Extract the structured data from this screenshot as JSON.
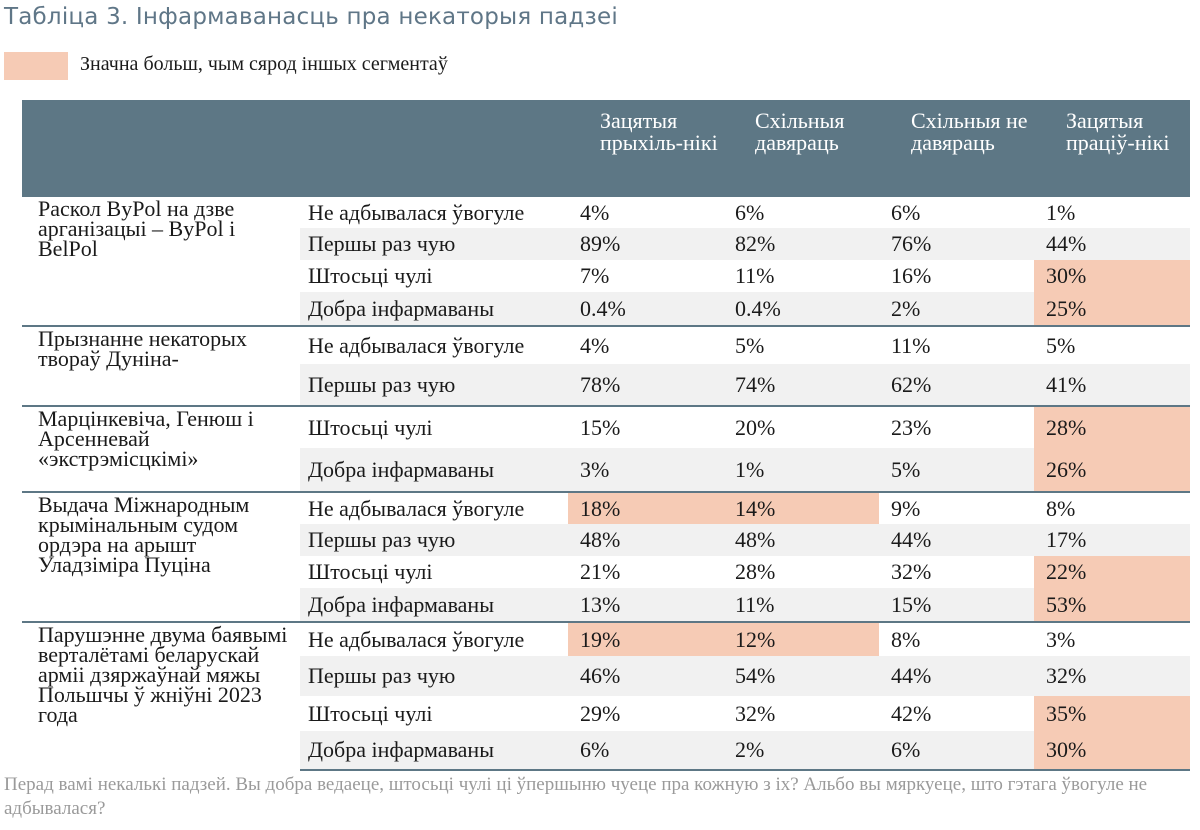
{
  "title": "Табліца 3. Інфармаванасць пра некаторыя падзеі",
  "legend": {
    "label": "Значна больш, чым сярод іншых сегментаў",
    "color": "#f6cbb5"
  },
  "header_color": "#5d7785",
  "columns": [
    "Зацятыя прыхіль-нікі",
    "Схільныя давяраць",
    "Схільныя не давяраць",
    "Зацятыя праціў-нікі"
  ],
  "groups": [
    {
      "event": "Раскол ByPol на дзве арганізацыі – ByPol і BelPol",
      "rows": [
        {
          "answer": "Не адбывалася ўвогуле",
          "values": [
            "4%",
            "6%",
            "6%",
            "1%"
          ],
          "highlight": [
            false,
            false,
            false,
            false
          ]
        },
        {
          "answer": "Першы раз чую",
          "values": [
            "89%",
            "82%",
            "76%",
            "44%"
          ],
          "highlight": [
            false,
            false,
            false,
            false
          ]
        },
        {
          "answer": "Штосьці чулі",
          "values": [
            "7%",
            "11%",
            "16%",
            "30%"
          ],
          "highlight": [
            false,
            false,
            false,
            true
          ]
        },
        {
          "answer": "Добра інфармаваны",
          "values": [
            "0.4%",
            "0.4%",
            "2%",
            "25%"
          ],
          "highlight": [
            false,
            false,
            false,
            true
          ]
        }
      ]
    },
    {
      "event": "Прызнанне некаторых твораў Дуніна-",
      "rows": [
        {
          "answer": "Не адбывалася ўвогуле",
          "values": [
            "4%",
            "5%",
            "11%",
            "5%"
          ],
          "highlight": [
            false,
            false,
            false,
            false
          ]
        },
        {
          "answer": "Першы раз чую",
          "values": [
            "78%",
            "74%",
            "62%",
            "41%"
          ],
          "highlight": [
            false,
            false,
            false,
            false
          ]
        }
      ]
    },
    {
      "event": "Марцінкевіча, Генюш і Арсенневай «экстрэмісцкімі»",
      "rows": [
        {
          "answer": "Штосьці чулі",
          "values": [
            "15%",
            "20%",
            "23%",
            "28%"
          ],
          "highlight": [
            false,
            false,
            false,
            true
          ]
        },
        {
          "answer": "Добра інфармаваны",
          "values": [
            "3%",
            "1%",
            "5%",
            "26%"
          ],
          "highlight": [
            false,
            false,
            false,
            true
          ]
        }
      ]
    },
    {
      "event": "Выдача Міжнародным крымінальным судом ордэра на арышт Уладзіміра Пуціна",
      "rows": [
        {
          "answer": "Не адбывалася ўвогуле",
          "values": [
            "18%",
            "14%",
            "9%",
            "8%"
          ],
          "highlight": [
            true,
            true,
            false,
            false
          ]
        },
        {
          "answer": "Першы раз чую",
          "values": [
            "48%",
            "48%",
            "44%",
            "17%"
          ],
          "highlight": [
            false,
            false,
            false,
            false
          ]
        },
        {
          "answer": "Штосьці чулі",
          "values": [
            "21%",
            "28%",
            "32%",
            "22%"
          ],
          "highlight": [
            false,
            false,
            false,
            true
          ]
        },
        {
          "answer": "Добра інфармаваны",
          "values": [
            "13%",
            "11%",
            "15%",
            "53%"
          ],
          "highlight": [
            false,
            false,
            false,
            true
          ]
        }
      ]
    },
    {
      "event": "Парушэнне двума баявымі верталётамі беларускай арміі дзяржаўнай мяжы Польшчы ў жніўні 2023 года",
      "rows": [
        {
          "answer": "Не адбывалася ўвогуле",
          "values": [
            "19%",
            "12%",
            "8%",
            "3%"
          ],
          "highlight": [
            true,
            true,
            false,
            false
          ]
        },
        {
          "answer": "Першы раз чую",
          "values": [
            "46%",
            "54%",
            "44%",
            "32%"
          ],
          "highlight": [
            false,
            false,
            false,
            false
          ]
        },
        {
          "answer": "Штосьці чулі",
          "values": [
            "29%",
            "32%",
            "42%",
            "35%"
          ],
          "highlight": [
            false,
            false,
            false,
            true
          ]
        },
        {
          "answer": "Добра інфармаваны",
          "values": [
            "6%",
            "2%",
            "6%",
            "30%"
          ],
          "highlight": [
            false,
            false,
            false,
            true
          ]
        }
      ]
    }
  ],
  "footnote": "Перад вамі некалькі падзей. Вы добра ведаеце, штосьці чулі ці ўпершыню чуеце пра кожную з іх? Альбо вы мяркуеце, што гэтага ўвогуле не адбывалася?"
}
